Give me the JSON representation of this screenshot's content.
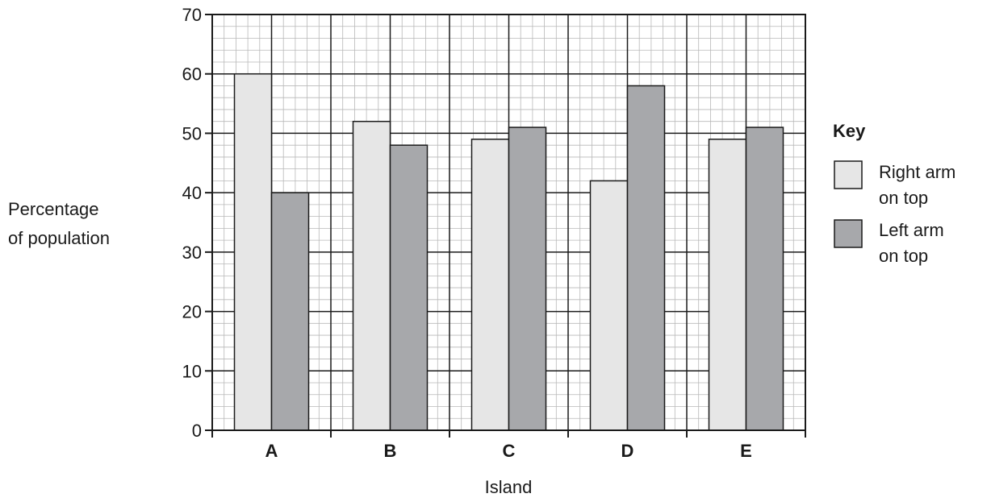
{
  "chart_data": {
    "type": "bar",
    "categories": [
      "A",
      "B",
      "C",
      "D",
      "E"
    ],
    "series": [
      {
        "name": "Right arm on top",
        "label_lines": [
          "Right arm",
          "on top"
        ],
        "values": [
          60,
          52,
          49,
          42,
          49
        ],
        "color": "#e6e6e6"
      },
      {
        "name": "Left arm on top",
        "label_lines": [
          "Left arm",
          "on top"
        ],
        "values": [
          40,
          48,
          51,
          58,
          51
        ],
        "color": "#a7a8ab"
      }
    ],
    "xlabel": "Island",
    "ylabel_lines": [
      "Percentage",
      "of population"
    ],
    "ylim": [
      0,
      70
    ],
    "yticks": [
      0,
      10,
      20,
      30,
      40,
      50,
      60,
      70
    ],
    "legend_title": "Key",
    "legend_position": "right",
    "grid": true,
    "grid_minor_step": 2,
    "grid_color": "#b8b8b8",
    "line_color": "#1a1a1a"
  }
}
